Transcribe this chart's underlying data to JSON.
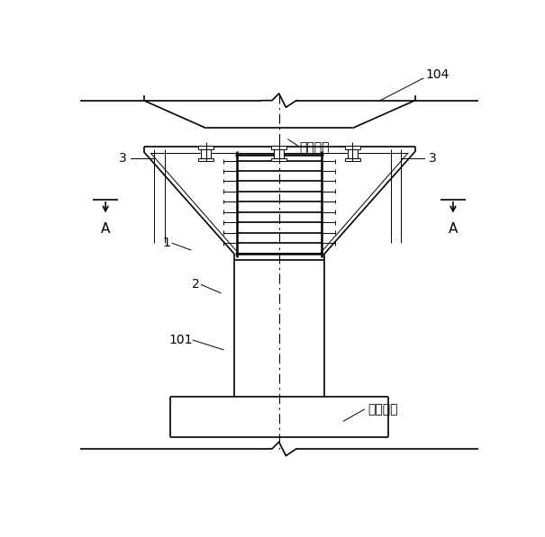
{
  "bg_color": "#ffffff",
  "line_color": "#000000",
  "fig_width": 6.05,
  "fig_height": 5.97,
  "labels": {
    "beam_seat": "桥梁支座",
    "pile_cap": "桥墩承台",
    "label_104": "104",
    "label_3_left": "3",
    "label_3_right": "3",
    "label_A_left": "A",
    "label_A_right": "A",
    "label_1": "1",
    "label_2": "2",
    "label_101": "101"
  }
}
